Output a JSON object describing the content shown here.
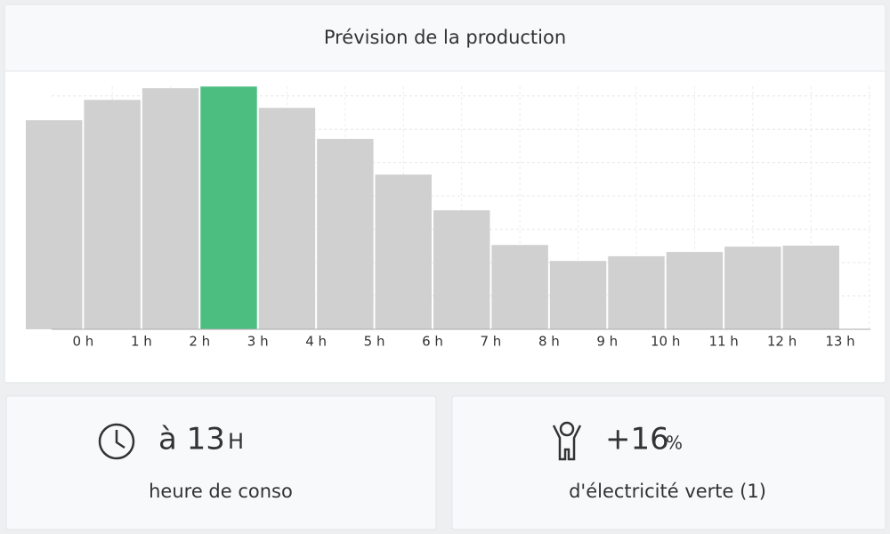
{
  "chart_data": {
    "type": "bar",
    "title": "Prévision de la production",
    "categories": [
      "0 h",
      "1 h",
      "2 h",
      "3 h",
      "4 h",
      "5 h",
      "6 h",
      "7 h",
      "8 h",
      "9 h",
      "10 h",
      "11 h",
      "12 h",
      "13 h"
    ],
    "values": [
      6.27,
      6.88,
      7.23,
      7.28,
      6.64,
      5.71,
      4.64,
      3.57,
      2.53,
      2.05,
      2.19,
      2.32,
      2.48,
      2.51
    ],
    "colors": [
      "#d0d0d0",
      "#d0d0d0",
      "#d0d0d0",
      "#4cbe80",
      "#d0d0d0",
      "#d0d0d0",
      "#d0d0d0",
      "#d0d0d0",
      "#d0d0d0",
      "#d0d0d0",
      "#d0d0d0",
      "#d0d0d0",
      "#d0d0d0",
      "#d0d0d0"
    ],
    "ylim": [
      0,
      7.5
    ],
    "yticks": [
      1,
      2,
      3,
      4,
      5,
      6,
      7
    ],
    "grid": true
  },
  "cards": [
    {
      "value": "à 13",
      "unit": "H",
      "label": "heure de conso"
    },
    {
      "value": "+16",
      "unit": "%",
      "label": "d'électricité verte (1)"
    }
  ]
}
